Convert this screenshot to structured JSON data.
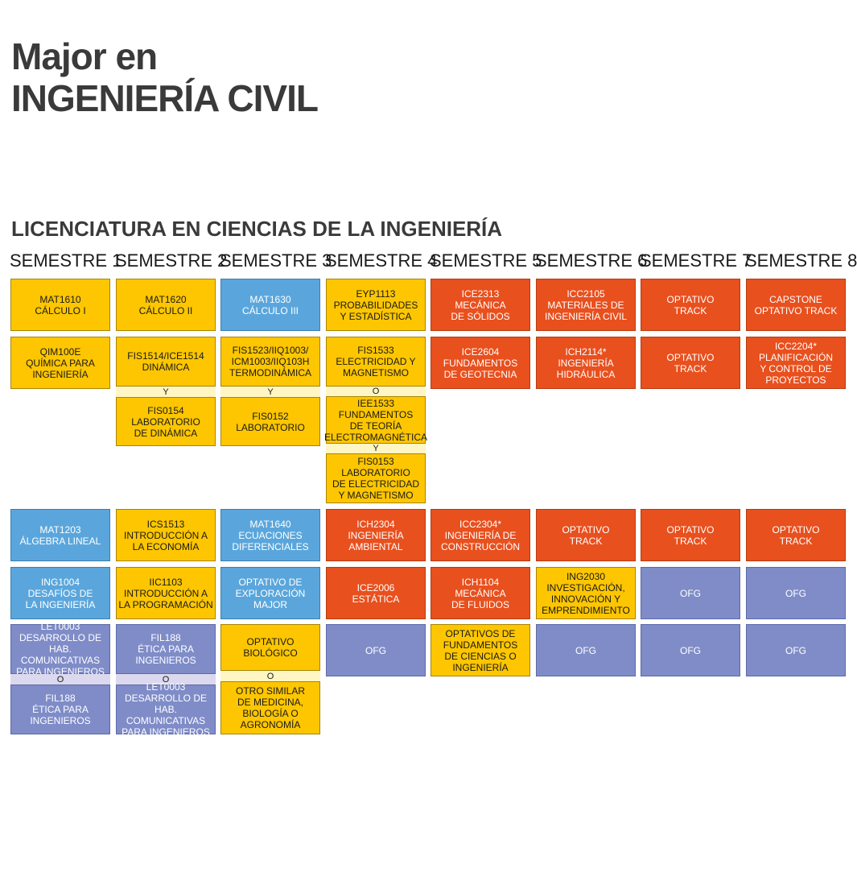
{
  "header": {
    "title_line1": "Major en",
    "title_line2": "INGENIERÍA CIVIL",
    "subtitle": "LICENCIATURA EN CIENCIAS DE LA INGENIERÍA"
  },
  "colors": {
    "yellow": "#fdc600",
    "blue": "#5aa6dc",
    "orange": "#e8501e",
    "purple": "#7f8cc8"
  },
  "semesters": [
    "SEMESTRE 1",
    "SEMESTRE 2",
    "SEMESTRE 3",
    "SEMESTRE 4",
    "SEMESTRE 5",
    "SEMESTRE 6",
    "SEMESTRE 7",
    "SEMESTRE 8"
  ],
  "courses": {
    "s1": {
      "r1": "MAT1610\nCÁLCULO I",
      "r2": "QIM100E\nQUÍMICA PARA\nINGENIERÍA",
      "r3": "MAT1203\nÁLGEBRA LINEAL",
      "r4": "ING1004\nDESAFÍOS DE\nLA INGENIERÍA",
      "r5a": "LET0003\nDESARROLLO DE HAB.\nCOMUNICATIVAS\nPARA INGENIEROS",
      "r5sep": "O",
      "r5b": "FIL188\nÉTICA PARA\nINGENIEROS"
    },
    "s2": {
      "r1": "MAT1620\nCÁLCULO II",
      "r2a": "FIS1514/ICE1514\nDINÁMICA",
      "r2sep": "Y",
      "r2b": "FIS0154\nLABORATORIO\nDE DINÁMICA",
      "r3": "ICS1513\nINTRODUCCIÓN A\nLA ECONOMÍA",
      "r4": "IIC1103\nINTRODUCCIÓN A\nLA PROGRAMACIÓN",
      "r5a": "FIL188\nÉTICA PARA\nINGENIEROS",
      "r5sep": "O",
      "r5b": "LET0003\nDESARROLLO DE HAB.\nCOMUNICATIVAS\nPARA INGENIEROS"
    },
    "s3": {
      "r1": "MAT1630\nCÁLCULO III",
      "r2a": "FIS1523/IIQ1003/\nICM1003/IIQ103H\nTERMODINÁMICA",
      "r2sep": "Y",
      "r2b": "FIS0152\nLABORATORIO",
      "r3": "MAT1640\nECUACIONES\nDIFERENCIALES",
      "r4": "OPTATIVO DE\nEXPLORACIÓN\nMAJOR",
      "r5a": "OPTATIVO\nBIOLÓGICO",
      "r5sep": "O",
      "r5b": "OTRO SIMILAR\nDE MEDICINA,\nBIOLOGÍA O\nAGRONOMÍA"
    },
    "s4": {
      "r1": "EYP1113\nPROBABILIDADES\nY ESTADÍSTICA",
      "r2a": "FIS1533\nELECTRICIDAD Y\nMAGNETISMO",
      "r2sep1": "O",
      "r2b": "IEE1533\nFUNDAMENTOS\nDE TEORÍA\nELECTROMAGNÉTICA",
      "r2sep2": "Y",
      "r2c": "FIS0153\nLABORATORIO\nDE ELECTRICIDAD\nY MAGNETISMO",
      "r3": "ICH2304\nINGENIERÍA\nAMBIENTAL",
      "r4": "ICE2006\nESTÁTICA",
      "r5": "OFG"
    },
    "s5": {
      "r1": "ICE2313\nMECÁNICA\nDE SÓLIDOS",
      "r2": "ICE2604\nFUNDAMENTOS\nDE GEOTECNIA",
      "r3": "ICC2304*\nINGENIERÍA DE\nCONSTRUCCIÓN",
      "r4": "ICH1104\nMECÁNICA\nDE FLUIDOS",
      "r5": "OPTATIVOS DE\nFUNDAMENTOS\nDE CIENCIAS O\nINGENIERÍA"
    },
    "s6": {
      "r1": "ICC2105\nMATERIALES DE\nINGENIERÍA CIVIL",
      "r2": "ICH2114*\nINGENIERÍA\nHIDRÁULICA",
      "r3": "OPTATIVO\nTRACK",
      "r4": "ING2030\nINVESTIGACIÓN,\nINNOVACIÓN Y\nEMPRENDIMIENTO",
      "r5": "OFG"
    },
    "s7": {
      "r1": "OPTATIVO\nTRACK",
      "r2": "OPTATIVO\nTRACK",
      "r3": "OPTATIVO\nTRACK",
      "r4": "OFG",
      "r5": "OFG"
    },
    "s8": {
      "r1": "CAPSTONE\nOPTATIVO TRACK",
      "r2": "ICC2204*\nPLANIFICACIÓN\nY CONTROL DE\nPROYECTOS",
      "r3": "OPTATIVO\nTRACK",
      "r4": "OFG",
      "r5": "OFG"
    }
  }
}
